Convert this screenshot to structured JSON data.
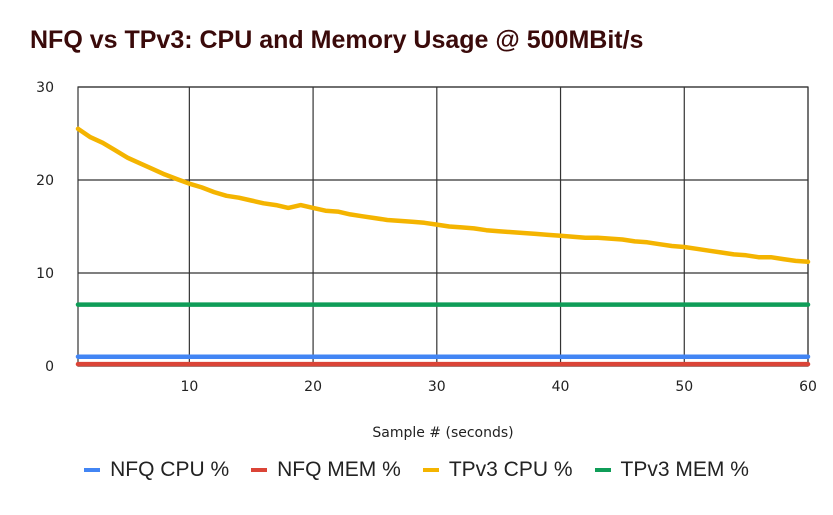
{
  "chart_data": {
    "type": "line",
    "title": "NFQ vs TPv3: CPU and Memory Usage @ 500MBit/s",
    "xlabel": "Sample # (seconds)",
    "ylabel": "",
    "xlim": [
      1,
      60
    ],
    "ylim": [
      0,
      30
    ],
    "x_ticks": [
      10,
      20,
      30,
      40,
      50,
      60
    ],
    "y_ticks": [
      0,
      10,
      20,
      30
    ],
    "grid": true,
    "legend_position": "bottom",
    "series": [
      {
        "name": "NFQ CPU %",
        "color": "#4285F4",
        "x": [
          1,
          60
        ],
        "y": [
          1.0,
          1.0
        ]
      },
      {
        "name": "NFQ MEM %",
        "color": "#DB4437",
        "x": [
          1,
          60
        ],
        "y": [
          0.2,
          0.2
        ]
      },
      {
        "name": "TPv3 CPU %",
        "color": "#F4B400",
        "x": [
          1,
          2,
          3,
          4,
          5,
          6,
          7,
          8,
          9,
          10,
          11,
          12,
          13,
          14,
          15,
          16,
          17,
          18,
          19,
          20,
          21,
          22,
          23,
          24,
          25,
          26,
          27,
          28,
          29,
          30,
          31,
          32,
          33,
          34,
          35,
          36,
          37,
          38,
          39,
          40,
          41,
          42,
          43,
          44,
          45,
          46,
          47,
          48,
          49,
          50,
          51,
          52,
          53,
          54,
          55,
          56,
          57,
          58,
          59,
          60
        ],
        "y": [
          25.5,
          24.6,
          24.0,
          23.2,
          22.4,
          21.8,
          21.2,
          20.6,
          20.1,
          19.6,
          19.2,
          18.7,
          18.3,
          18.1,
          17.8,
          17.5,
          17.3,
          17.0,
          17.3,
          17.0,
          16.7,
          16.6,
          16.3,
          16.1,
          15.9,
          15.7,
          15.6,
          15.5,
          15.4,
          15.2,
          15.0,
          14.9,
          14.8,
          14.6,
          14.5,
          14.4,
          14.3,
          14.2,
          14.1,
          14.0,
          13.9,
          13.8,
          13.8,
          13.7,
          13.6,
          13.4,
          13.3,
          13.1,
          12.9,
          12.8,
          12.6,
          12.4,
          12.2,
          12.0,
          11.9,
          11.7,
          11.7,
          11.5,
          11.3,
          11.2
        ]
      },
      {
        "name": "TPv3 MEM %",
        "color": "#0F9D58",
        "x": [
          1,
          60
        ],
        "y": [
          6.6,
          6.6
        ]
      }
    ]
  }
}
